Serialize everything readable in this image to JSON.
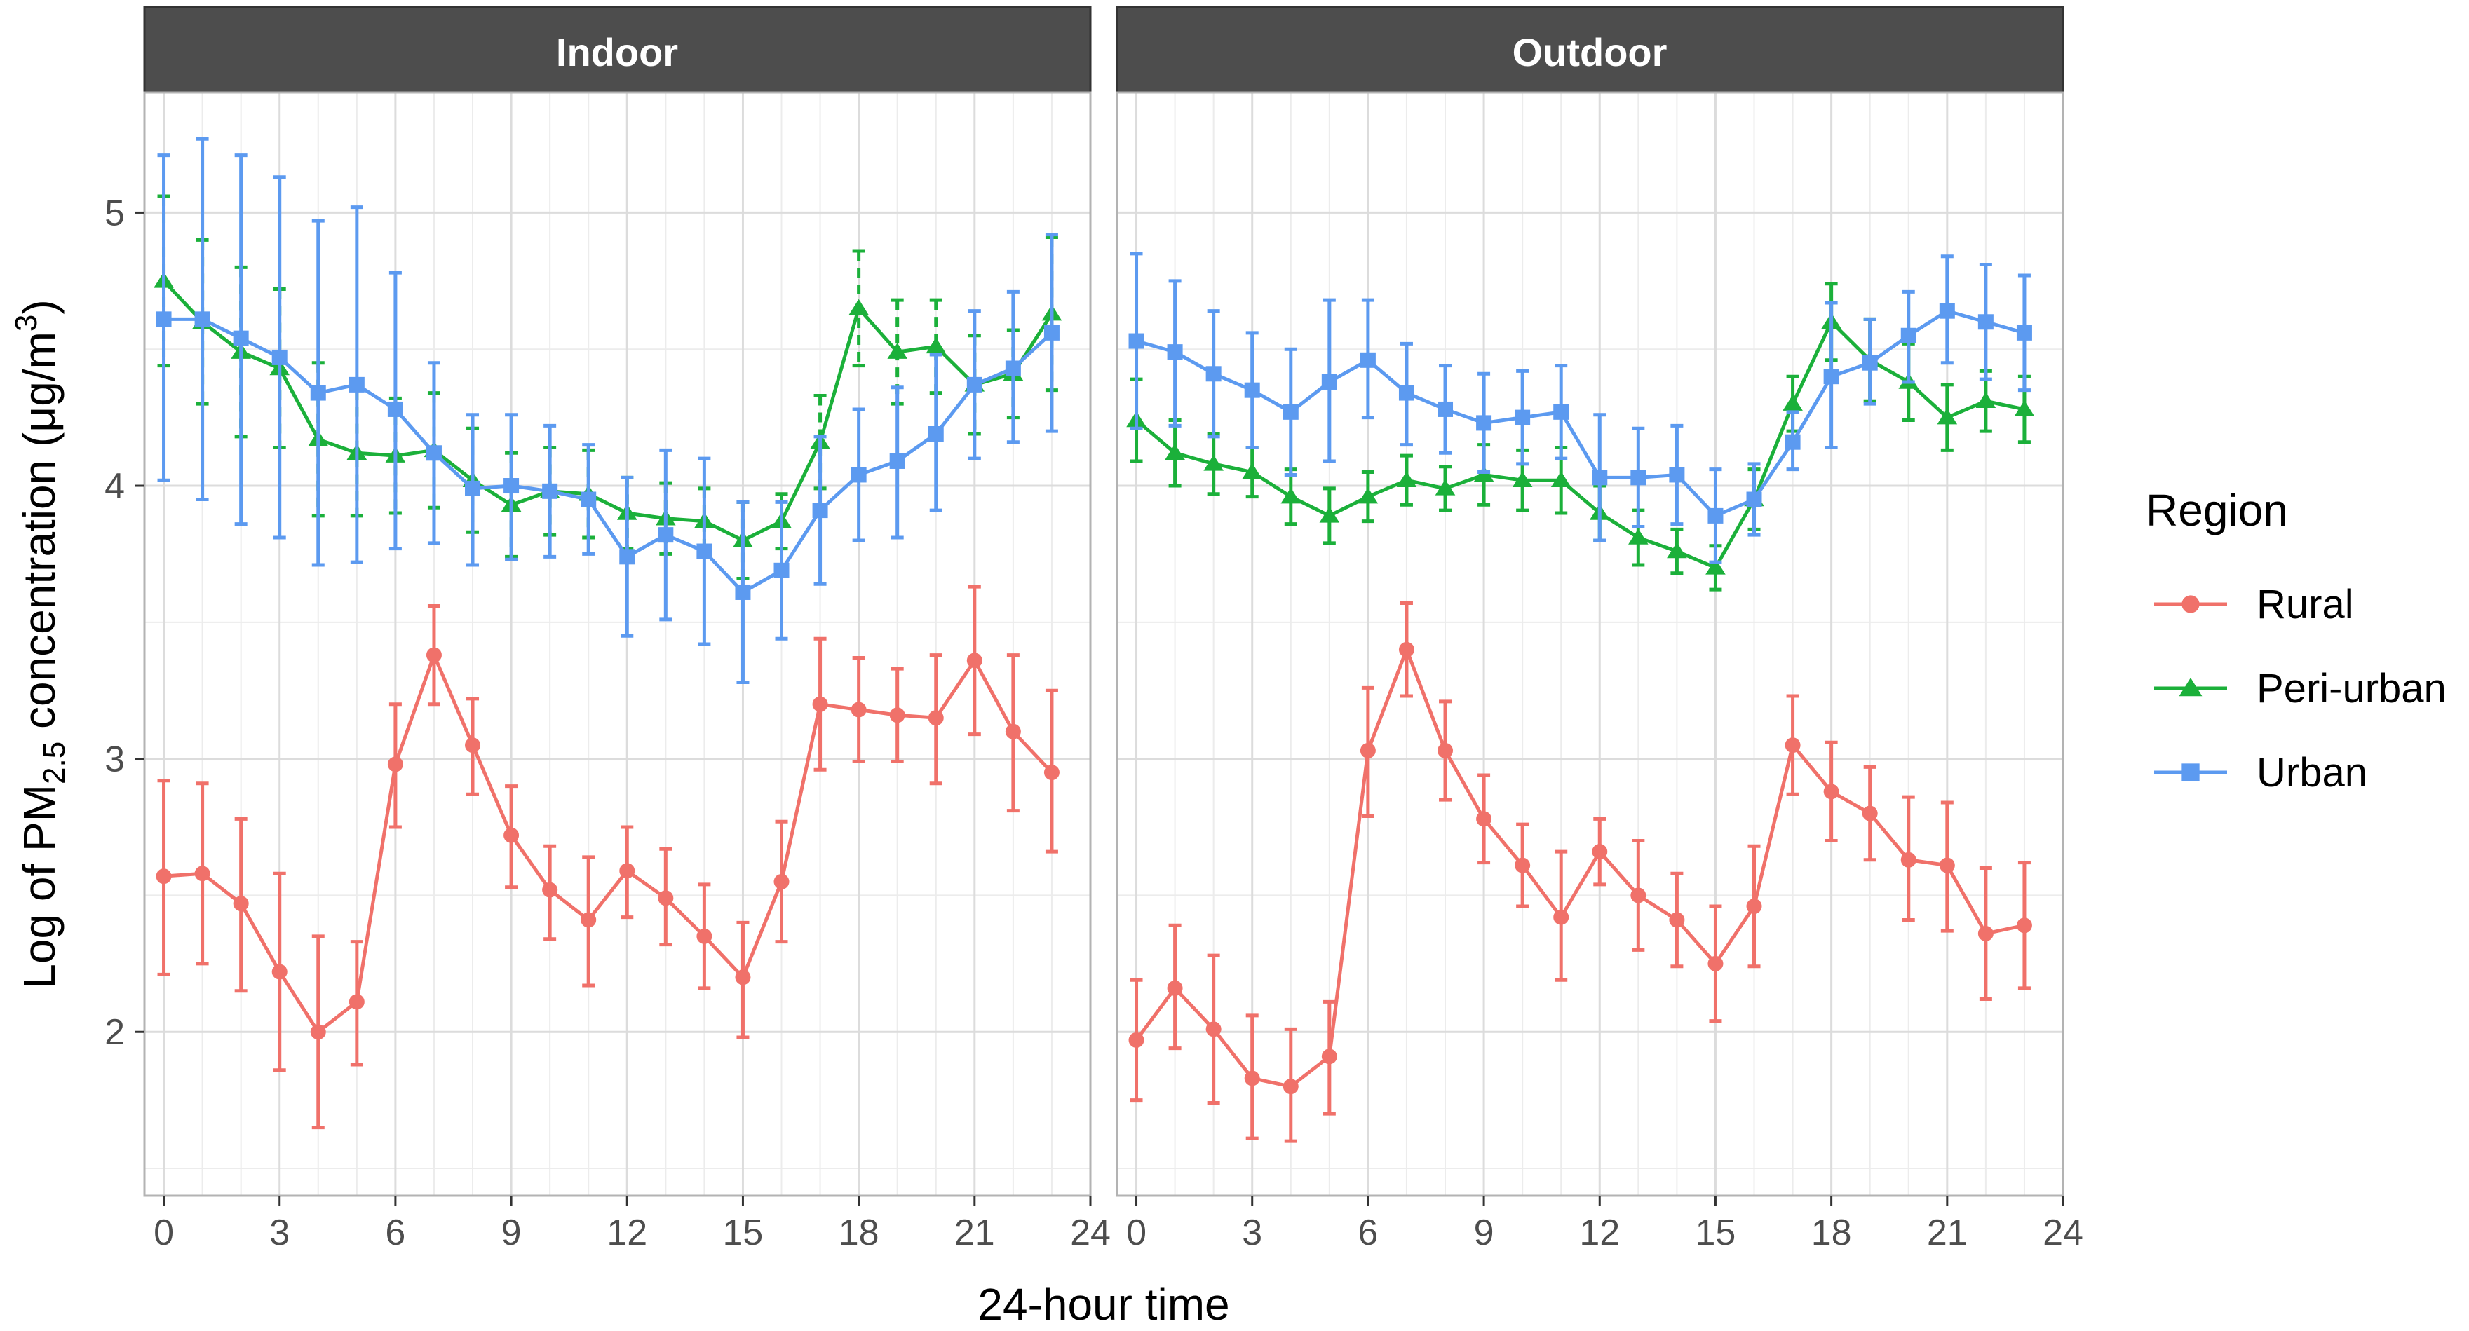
{
  "chart_data": {
    "type": "line",
    "ylabel_parts": {
      "pre": "Log of PM",
      "sub": "2.5",
      "mid": " concentration (μg/m",
      "sup": "3",
      "post": ")"
    },
    "xlabel": "24-hour time",
    "legend_title": "Region",
    "xlim": [
      -0.5,
      24
    ],
    "ylim": [
      1.4,
      5.44
    ],
    "x_ticks": [
      0,
      3,
      6,
      9,
      12,
      15,
      18,
      21,
      24
    ],
    "y_ticks": [
      2,
      3,
      4,
      5
    ],
    "x": [
      0,
      1,
      2,
      3,
      4,
      5,
      6,
      7,
      8,
      9,
      10,
      11,
      12,
      13,
      14,
      15,
      16,
      17,
      18,
      19,
      20,
      21,
      22,
      23
    ],
    "colors": {
      "Rural": "#F0716A",
      "Peri-urban": "#1BB03A",
      "Urban": "#5C9AF0"
    },
    "legend": [
      {
        "name": "Rural",
        "label": "Rural"
      },
      {
        "name": "Peri-urban",
        "label": "Peri-urban"
      },
      {
        "name": "Urban",
        "label": "Urban"
      }
    ],
    "panels": [
      {
        "title": "Indoor",
        "series": [
          {
            "name": "Rural",
            "marker": "circle",
            "mean": [
              2.57,
              2.58,
              2.47,
              2.22,
              2.0,
              2.11,
              2.98,
              3.38,
              3.05,
              2.72,
              2.52,
              2.41,
              2.59,
              2.49,
              2.35,
              2.2,
              2.55,
              3.2,
              3.18,
              3.16,
              3.15,
              3.36,
              3.1,
              2.95
            ],
            "upper": [
              2.92,
              2.91,
              2.78,
              2.58,
              2.35,
              2.33,
              3.2,
              3.56,
              3.22,
              2.9,
              2.68,
              2.64,
              2.75,
              2.67,
              2.54,
              2.4,
              2.77,
              3.44,
              3.37,
              3.33,
              3.38,
              3.63,
              3.38,
              3.25
            ],
            "lower": [
              2.21,
              2.25,
              2.15,
              1.86,
              1.65,
              1.88,
              2.75,
              3.2,
              2.87,
              2.53,
              2.34,
              2.17,
              2.42,
              2.32,
              2.16,
              1.98,
              2.33,
              2.96,
              2.99,
              2.99,
              2.91,
              3.09,
              2.81,
              2.66
            ]
          },
          {
            "name": "Peri-urban",
            "marker": "triangle",
            "mean": [
              4.75,
              4.6,
              4.49,
              4.43,
              4.17,
              4.12,
              4.11,
              4.13,
              4.02,
              3.93,
              3.98,
              3.97,
              3.9,
              3.88,
              3.87,
              3.8,
              3.87,
              4.16,
              4.65,
              4.49,
              4.51,
              4.37,
              4.41,
              4.63
            ],
            "upper": [
              5.06,
              4.9,
              4.8,
              4.72,
              4.45,
              4.35,
              4.32,
              4.34,
              4.21,
              4.12,
              4.14,
              4.13,
              4.03,
              4.01,
              3.99,
              3.94,
              3.97,
              4.33,
              4.86,
              4.68,
              4.68,
              4.55,
              4.57,
              4.91
            ],
            "lower": [
              4.44,
              4.3,
              4.18,
              4.14,
              3.89,
              3.89,
              3.9,
              3.92,
              3.83,
              3.74,
              3.82,
              3.81,
              3.77,
              3.75,
              3.75,
              3.66,
              3.77,
              3.99,
              4.44,
              4.3,
              4.34,
              4.19,
              4.25,
              4.35
            ]
          },
          {
            "name": "Urban",
            "marker": "square",
            "mean": [
              4.61,
              4.61,
              4.54,
              4.47,
              4.34,
              4.37,
              4.28,
              4.12,
              3.99,
              4.0,
              3.98,
              3.95,
              3.74,
              3.82,
              3.76,
              3.61,
              3.69,
              3.91,
              4.04,
              4.09,
              4.19,
              4.37,
              4.43,
              4.56
            ],
            "upper": [
              5.21,
              5.27,
              5.21,
              5.13,
              4.97,
              5.02,
              4.78,
              4.45,
              4.26,
              4.26,
              4.22,
              4.15,
              4.03,
              4.13,
              4.1,
              3.94,
              3.94,
              4.18,
              4.28,
              4.36,
              4.48,
              4.64,
              4.71,
              4.92
            ],
            "lower": [
              4.02,
              3.95,
              3.86,
              3.81,
              3.71,
              3.72,
              3.77,
              3.79,
              3.71,
              3.73,
              3.74,
              3.75,
              3.45,
              3.51,
              3.42,
              3.28,
              3.44,
              3.64,
              3.8,
              3.81,
              3.91,
              4.1,
              4.16,
              4.2
            ]
          }
        ]
      },
      {
        "title": "Outdoor",
        "series": [
          {
            "name": "Rural",
            "marker": "circle",
            "mean": [
              1.97,
              2.16,
              2.01,
              1.83,
              1.8,
              1.91,
              3.03,
              3.4,
              3.03,
              2.78,
              2.61,
              2.42,
              2.66,
              2.5,
              2.41,
              2.25,
              2.46,
              3.05,
              2.88,
              2.8,
              2.63,
              2.61,
              2.36,
              2.39
            ],
            "upper": [
              2.19,
              2.39,
              2.28,
              2.06,
              2.01,
              2.11,
              3.26,
              3.57,
              3.21,
              2.94,
              2.76,
              2.66,
              2.78,
              2.7,
              2.58,
              2.46,
              2.68,
              3.23,
              3.06,
              2.97,
              2.86,
              2.84,
              2.6,
              2.62
            ],
            "lower": [
              1.75,
              1.94,
              1.74,
              1.61,
              1.6,
              1.7,
              2.79,
              3.23,
              2.85,
              2.62,
              2.46,
              2.19,
              2.54,
              2.3,
              2.24,
              2.04,
              2.24,
              2.87,
              2.7,
              2.63,
              2.41,
              2.37,
              2.12,
              2.16
            ]
          },
          {
            "name": "Peri-urban",
            "marker": "triangle",
            "mean": [
              4.24,
              4.12,
              4.08,
              4.05,
              3.96,
              3.89,
              3.96,
              4.02,
              3.99,
              4.04,
              4.02,
              4.02,
              3.9,
              3.81,
              3.76,
              3.7,
              3.95,
              4.3,
              4.6,
              4.46,
              4.38,
              4.25,
              4.31,
              4.28
            ],
            "upper": [
              4.39,
              4.24,
              4.19,
              4.14,
              4.06,
              3.99,
              4.05,
              4.11,
              4.07,
              4.15,
              4.13,
              4.14,
              4.0,
              3.91,
              3.84,
              3.78,
              4.06,
              4.4,
              4.74,
              4.61,
              4.52,
              4.37,
              4.42,
              4.4
            ],
            "lower": [
              4.09,
              4.0,
              3.97,
              3.96,
              3.86,
              3.79,
              3.87,
              3.93,
              3.91,
              3.93,
              3.91,
              3.9,
              3.8,
              3.71,
              3.68,
              3.62,
              3.84,
              4.2,
              4.46,
              4.31,
              4.24,
              4.13,
              4.2,
              4.16
            ]
          },
          {
            "name": "Urban",
            "marker": "square",
            "mean": [
              4.53,
              4.49,
              4.41,
              4.35,
              4.27,
              4.38,
              4.46,
              4.34,
              4.28,
              4.23,
              4.25,
              4.27,
              4.03,
              4.03,
              4.04,
              3.89,
              3.95,
              4.16,
              4.4,
              4.45,
              4.55,
              4.64,
              4.6,
              4.56
            ],
            "upper": [
              4.85,
              4.75,
              4.64,
              4.56,
              4.5,
              4.68,
              4.68,
              4.52,
              4.44,
              4.41,
              4.42,
              4.44,
              4.26,
              4.21,
              4.22,
              4.06,
              4.08,
              4.27,
              4.67,
              4.61,
              4.71,
              4.84,
              4.81,
              4.77
            ],
            "lower": [
              4.21,
              4.22,
              4.18,
              4.14,
              4.04,
              4.09,
              4.25,
              4.15,
              4.12,
              4.05,
              4.08,
              4.1,
              3.8,
              3.85,
              3.86,
              3.72,
              3.82,
              4.06,
              4.14,
              4.3,
              4.38,
              4.45,
              4.39,
              4.35
            ]
          }
        ]
      }
    ]
  }
}
